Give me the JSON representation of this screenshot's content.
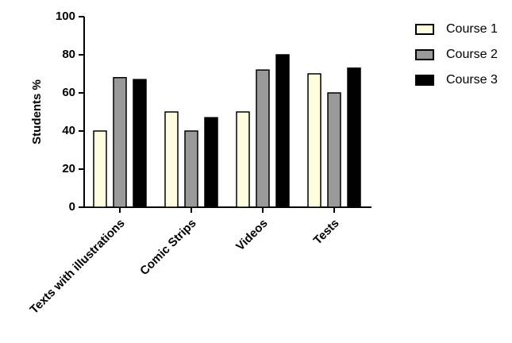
{
  "chart_data": {
    "type": "bar",
    "ylabel": "Students %",
    "categories": [
      "Texts with illustrations",
      "Comic Strips",
      "Videos",
      "Tests"
    ],
    "series": [
      {
        "name": "Course 1",
        "color": "#fffde0",
        "values": [
          40,
          50,
          50,
          70
        ]
      },
      {
        "name": "Course 2",
        "color": "#999999",
        "values": [
          68,
          40,
          72,
          60
        ]
      },
      {
        "name": "Course 3",
        "color": "#000000",
        "values": [
          67,
          47,
          80,
          73
        ]
      }
    ],
    "ylim": [
      0,
      100
    ],
    "yticks": [
      0,
      20,
      40,
      60,
      80,
      100
    ],
    "legend": "right"
  }
}
